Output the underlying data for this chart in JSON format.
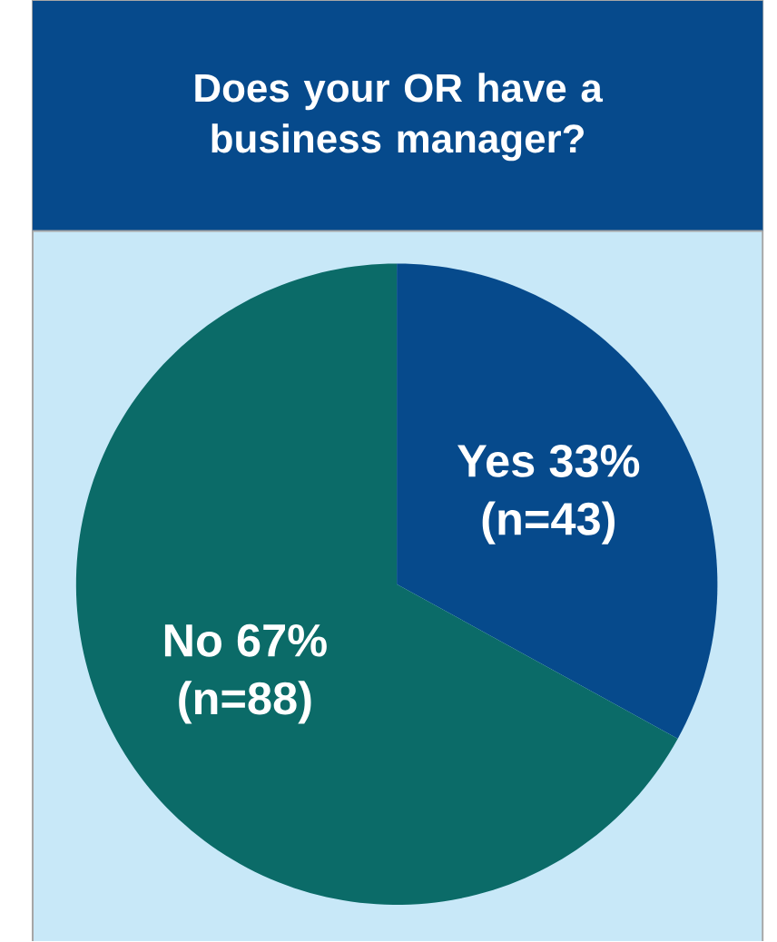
{
  "chart_data": {
    "type": "pie",
    "title": "Does your OR have a business manager?",
    "categories": [
      "Yes",
      "No"
    ],
    "values": [
      33,
      67
    ],
    "value_labels": [
      "33%",
      "67%"
    ],
    "annotations": [
      "(n=43)",
      "(n=88)"
    ],
    "colors": [
      "#064a8c",
      "#0b6b68"
    ]
  }
}
